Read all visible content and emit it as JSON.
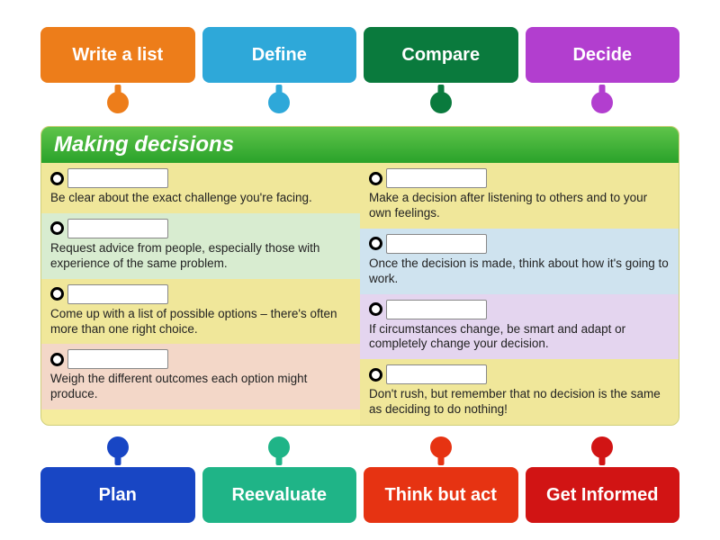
{
  "top_tags": [
    {
      "label": "Write a list",
      "color": "#ed7d1a"
    },
    {
      "label": "Define",
      "color": "#2ea8d9"
    },
    {
      "label": "Compare",
      "color": "#0a7a3d"
    },
    {
      "label": "Decide",
      "color": "#b23ecf"
    }
  ],
  "bottom_tags": [
    {
      "label": "Plan",
      "color": "#1846c4"
    },
    {
      "label": "Reevaluate",
      "color": "#1fb487"
    },
    {
      "label": "Think but act",
      "color": "#e63312"
    },
    {
      "label": "Get Informed",
      "color": "#d11414"
    }
  ],
  "board": {
    "title": "Making decisions",
    "title_bg": "#3fae3a",
    "bg": "#f5ec9e",
    "left": [
      {
        "text": "Be clear about the exact challenge you're facing.",
        "bg": "#f0e79a"
      },
      {
        "text": "Request advice from people, especially those with experience of the same problem.",
        "bg": "#d8ecd0"
      },
      {
        "text": "Come up with a list of possible options – there's often more than one right choice.",
        "bg": "#f0e79a"
      },
      {
        "text": "Weigh the different outcomes each option might produce.",
        "bg": "#f3d7c8"
      }
    ],
    "right": [
      {
        "text": "Make a decision after listening to others and to your own feelings.",
        "bg": "#f0e79a"
      },
      {
        "text": "Once the decision is made, think about how it's going to work.",
        "bg": "#cfe3ef"
      },
      {
        "text": "If circumstances change, be smart and adapt or completely change your decision.",
        "bg": "#e4d5ef"
      },
      {
        "text": "Don't rush, but remember that no decision is the same as deciding to do nothing!",
        "bg": "#f0e79a"
      }
    ]
  }
}
